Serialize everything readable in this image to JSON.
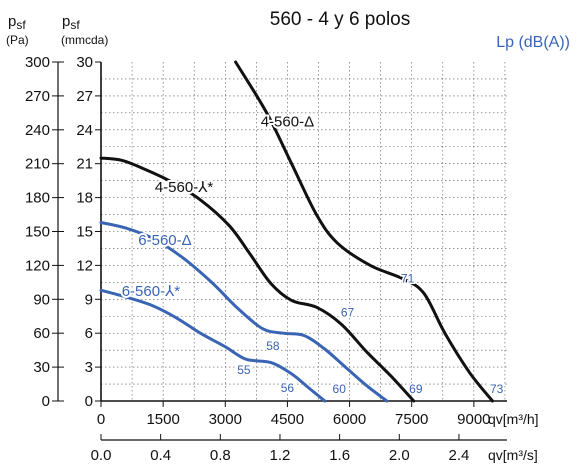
{
  "chart_data": {
    "type": "line",
    "title": "560 - 4 y 6 polos",
    "lp_label": "Lp (dB(A))",
    "y_axes": {
      "pa": {
        "label_main": "p",
        "label_sub": "sf",
        "unit": "(Pa)",
        "ticks": [
          0,
          30,
          60,
          90,
          120,
          150,
          180,
          210,
          240,
          270,
          300
        ]
      },
      "mmcda": {
        "label_main": "p",
        "label_sub": "sf",
        "unit": "(mmcda)",
        "ticks": [
          0,
          3,
          6,
          9,
          12,
          15,
          18,
          21,
          24,
          27,
          30
        ]
      }
    },
    "x_axes": {
      "m3h": {
        "label": "qv[m³/h]",
        "ticks": [
          0,
          1500,
          3000,
          4500,
          6000,
          7500,
          9000
        ]
      },
      "m3s": {
        "label": "qv[m³/s]",
        "ticks": [
          "0.0",
          "0.4",
          "0.8",
          "1.2",
          "1.6",
          "2.0",
          "2.4"
        ],
        "values": [
          0.0,
          0.4,
          0.8,
          1.2,
          1.6,
          2.0,
          2.4
        ]
      }
    },
    "xlim": [
      0,
      9800
    ],
    "ylim": [
      0,
      30
    ],
    "grid": true,
    "colors": {
      "series_4pole": "#111111",
      "series_6pole": "#3a64b4",
      "noise_labels": "#3a64b4"
    },
    "series": [
      {
        "name": "4-560-Δ",
        "color": "#111111",
        "points": [
          [
            3250,
            30
          ],
          [
            4000,
            25.5
          ],
          [
            4600,
            21
          ],
          [
            5200,
            16.5
          ],
          [
            5700,
            14
          ],
          [
            6500,
            12
          ],
          [
            7300,
            10.8
          ],
          [
            7800,
            9.5
          ],
          [
            8300,
            6
          ],
          [
            8900,
            2.5
          ],
          [
            9450,
            0
          ]
        ],
        "noise": [
          {
            "label": "71",
            "x": 7400,
            "y": 10.5
          },
          {
            "label": "73",
            "x": 9550,
            "y": 0.7
          }
        ]
      },
      {
        "name": "4-560-⅄*",
        "color": "#111111",
        "points": [
          [
            0,
            21.5
          ],
          [
            500,
            21.3
          ],
          [
            1000,
            20.6
          ],
          [
            1700,
            19.4
          ],
          [
            2400,
            17.8
          ],
          [
            3100,
            15.5
          ],
          [
            3600,
            13
          ],
          [
            4100,
            10.4
          ],
          [
            4600,
            8.9
          ],
          [
            5200,
            8.3
          ],
          [
            5800,
            6.8
          ],
          [
            6400,
            4.4
          ],
          [
            7000,
            2.2
          ],
          [
            7550,
            0
          ]
        ],
        "noise": [
          {
            "label": "67",
            "x": 5950,
            "y": 7.5
          },
          {
            "label": "69",
            "x": 7600,
            "y": 0.7
          }
        ]
      },
      {
        "name": "6-560-Δ",
        "color": "#3a64b4",
        "points": [
          [
            0,
            15.8
          ],
          [
            600,
            15.3
          ],
          [
            1300,
            14.3
          ],
          [
            2000,
            12.6
          ],
          [
            2700,
            10.4
          ],
          [
            3300,
            8.2
          ],
          [
            3900,
            6.4
          ],
          [
            4400,
            6
          ],
          [
            4900,
            5.8
          ],
          [
            5400,
            4.6
          ],
          [
            5900,
            3
          ],
          [
            6400,
            1.4
          ],
          [
            6900,
            0
          ]
        ],
        "noise": [
          {
            "label": "58",
            "x": 4150,
            "y": 4.5
          },
          {
            "label": "60",
            "x": 5750,
            "y": 0.7
          }
        ]
      },
      {
        "name": "6-560-⅄*",
        "color": "#3a64b4",
        "points": [
          [
            0,
            9.8
          ],
          [
            600,
            9.2
          ],
          [
            1200,
            8.5
          ],
          [
            1800,
            7.4
          ],
          [
            2400,
            6
          ],
          [
            3000,
            4.8
          ],
          [
            3500,
            3.7
          ],
          [
            4100,
            3.4
          ],
          [
            4600,
            2.4
          ],
          [
            5000,
            1.2
          ],
          [
            5400,
            0
          ]
        ],
        "noise": [
          {
            "label": "55",
            "x": 3450,
            "y": 2.4
          },
          {
            "label": "56",
            "x": 4500,
            "y": 0.8
          }
        ]
      }
    ]
  }
}
